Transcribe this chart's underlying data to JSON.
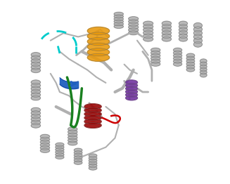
{
  "bg_color": "#ffffff",
  "figsize": [
    3.27,
    2.62
  ],
  "dpi": 100,
  "gray_color": "#b0b0b0",
  "gray_dark": "#707070",
  "cyan_color": "#00cccc",
  "cyan_lw": 2.0,
  "orange_color": "#e8980a",
  "blue_color": "#2060c0",
  "green_color": "#1a8020",
  "purple_color": "#7030a0",
  "red_helix_color": "#990000",
  "red_loop_color": "#cc0000"
}
